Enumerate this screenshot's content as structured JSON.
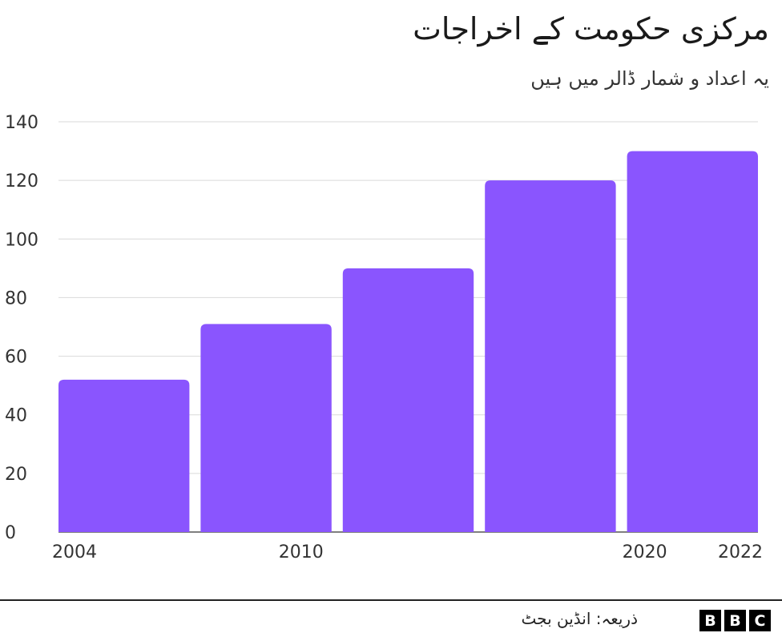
{
  "chart_data": {
    "type": "bar",
    "title": "مرکزی حکومت کے اخراجات",
    "subtitle": "یہ اعداد و شمار ڈالر میں ہیں",
    "categories": [
      "2004",
      "2010",
      "",
      "2020",
      "2022"
    ],
    "values": [
      52,
      71,
      90,
      120,
      130
    ],
    "x_tick_labels": [
      "2004",
      "2010",
      "2020",
      "2022"
    ],
    "y_ticks": [
      0,
      20,
      40,
      60,
      80,
      100,
      120,
      140
    ],
    "ylim": [
      0,
      140
    ],
    "grid": true,
    "bar_color": "#8a55fe",
    "source": "ذریعہ: انڈین بجٹ"
  },
  "branding": {
    "logo": [
      "B",
      "B",
      "C"
    ]
  }
}
